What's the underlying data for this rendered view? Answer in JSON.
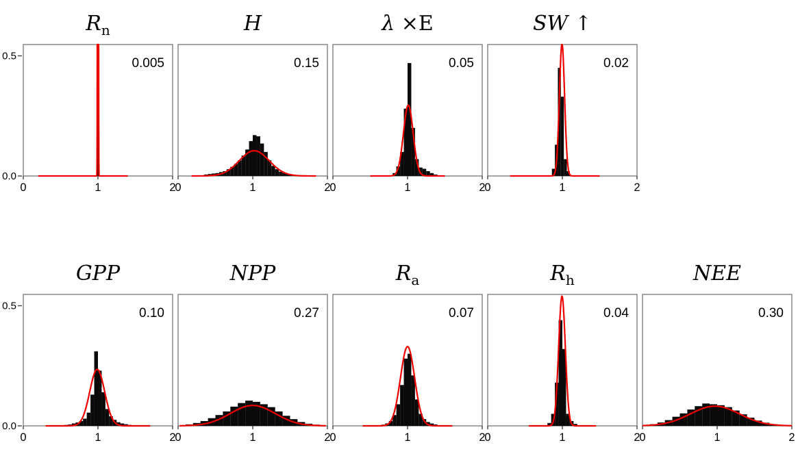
{
  "chart_data": {
    "type": "bar",
    "subtype": "histogram-grid-with-fitted-curves",
    "x_axis": {
      "range": [
        0,
        2
      ],
      "ticks": [
        {
          "label": "0",
          "value": 0
        },
        {
          "label": "1",
          "value": 1
        },
        {
          "label": "2",
          "value": 2
        }
      ]
    },
    "y_axis": {
      "range": [
        0,
        0.55
      ],
      "ticks": [
        {
          "label": "0.5",
          "value": 0.5
        },
        {
          "label": "0.0",
          "value": 0.0
        }
      ]
    },
    "colors": {
      "bar": "#0a0a0a",
      "curve": "#ee0000",
      "box_border": "#777777",
      "text": "#000000",
      "background": "#ffffff"
    },
    "rows": [
      {
        "name": "energy-fluxes",
        "panels": [
          {
            "name": "rn",
            "label": "Rn",
            "title_parts": [
              {
                "t": "R",
                "style": "i"
              },
              {
                "t": "n",
                "style": "sub"
              }
            ],
            "annotation": "0.005",
            "histogram": {
              "bin_start": 0.99,
              "bin_width": 0.02,
              "heights": [
                0.52
              ]
            },
            "curve": {
              "mean": 1.0,
              "sigma": 0.004,
              "peak": 9.0,
              "range": [
                0.2,
                1.4
              ]
            }
          },
          {
            "name": "h",
            "label": "H",
            "title_parts": [
              {
                "t": "H",
                "style": "i"
              }
            ],
            "annotation": "0.15",
            "histogram": {
              "bin_start": 0.35,
              "bin_width": 0.05,
              "heights": [
                0.006,
                0.008,
                0.01,
                0.012,
                0.016,
                0.02,
                0.028,
                0.038,
                0.05,
                0.065,
                0.085,
                0.11,
                0.145,
                0.17,
                0.165,
                0.135,
                0.1,
                0.065,
                0.042,
                0.028,
                0.018,
                0.012,
                0.008,
                0.005
              ]
            },
            "curve": {
              "mean": 1.02,
              "sigma": 0.2,
              "peak": 0.105,
              "range": [
                0.18,
                1.85
              ]
            }
          },
          {
            "name": "lambda-e",
            "label": "λ×E",
            "title_parts": [
              {
                "t": "λ",
                "style": "i"
              },
              {
                "t": " ×E",
                "style": "n"
              }
            ],
            "annotation": "0.05",
            "histogram": {
              "bin_start": 0.8,
              "bin_width": 0.05,
              "heights": [
                0.012,
                0.04,
                0.1,
                0.28,
                0.47,
                0.2,
                0.07,
                0.035,
                0.03,
                0.02,
                0.012,
                0.006
              ]
            },
            "curve": {
              "mean": 1.01,
              "sigma": 0.065,
              "peak": 0.295,
              "range": [
                0.5,
                1.5
              ]
            }
          },
          {
            "name": "sw-up",
            "label": "SW↑",
            "title_parts": [
              {
                "t": "SW",
                "style": "i"
              },
              {
                "t": " ↑",
                "style": "n"
              }
            ],
            "annotation": "0.02",
            "histogram": {
              "bin_start": 0.86,
              "bin_width": 0.04,
              "heights": [
                0.03,
                0.13,
                0.45,
                0.33,
                0.07,
                0.02
              ]
            },
            "curve": {
              "mean": 0.995,
              "sigma": 0.035,
              "peak": 0.55,
              "range": [
                0.3,
                1.5
              ]
            }
          }
        ]
      },
      {
        "name": "carbon-fluxes",
        "panels": [
          {
            "name": "gpp",
            "label": "GPP",
            "title_parts": [
              {
                "t": "GPP",
                "style": "i"
              }
            ],
            "annotation": "0.10",
            "histogram": {
              "bin_start": 0.55,
              "bin_width": 0.05,
              "heights": [
                0.004,
                0.006,
                0.01,
                0.014,
                0.02,
                0.03,
                0.055,
                0.13,
                0.31,
                0.23,
                0.14,
                0.07,
                0.04,
                0.025,
                0.015,
                0.01,
                0.007,
                0.004
              ]
            },
            "curve": {
              "mean": 0.99,
              "sigma": 0.1,
              "peak": 0.235,
              "range": [
                0.3,
                1.7
              ]
            }
          },
          {
            "name": "npp",
            "label": "NPP",
            "title_parts": [
              {
                "t": "NPP",
                "style": "i"
              }
            ],
            "annotation": "0.27",
            "histogram": {
              "bin_start": 0.1,
              "bin_width": 0.1,
              "heights": [
                0.006,
                0.012,
                0.02,
                0.032,
                0.045,
                0.06,
                0.08,
                0.095,
                0.105,
                0.1,
                0.09,
                0.078,
                0.06,
                0.042,
                0.028,
                0.016,
                0.009,
                0.005
              ]
            },
            "curve": {
              "mean": 1.0,
              "sigma": 0.3,
              "peak": 0.085,
              "range": [
                0.02,
                1.98
              ]
            }
          },
          {
            "name": "ra",
            "label": "Ra",
            "title_parts": [
              {
                "t": "R",
                "style": "i"
              },
              {
                "t": "a",
                "style": "sub"
              }
            ],
            "annotation": "0.07",
            "histogram": {
              "bin_start": 0.65,
              "bin_width": 0.05,
              "heights": [
                0.005,
                0.01,
                0.02,
                0.045,
                0.09,
                0.17,
                0.28,
                0.3,
                0.21,
                0.11,
                0.05,
                0.028,
                0.016,
                0.01,
                0.006
              ]
            },
            "curve": {
              "mean": 1.0,
              "sigma": 0.095,
              "peak": 0.33,
              "range": [
                0.4,
                1.6
              ]
            }
          },
          {
            "name": "rh",
            "label": "Rh",
            "title_parts": [
              {
                "t": "R",
                "style": "i"
              },
              {
                "t": "h",
                "style": "sub"
              }
            ],
            "annotation": "0.04",
            "histogram": {
              "bin_start": 0.8,
              "bin_width": 0.05,
              "heights": [
                0.012,
                0.05,
                0.18,
                0.44,
                0.32,
                0.05,
                0.02,
                0.008
              ]
            },
            "curve": {
              "mean": 0.995,
              "sigma": 0.045,
              "peak": 0.54,
              "range": [
                0.55,
                1.45
              ]
            }
          },
          {
            "name": "nee",
            "label": "NEE",
            "title_parts": [
              {
                "t": "NEE",
                "style": "i"
              }
            ],
            "annotation": "0.30",
            "histogram": {
              "bin_start": 0.0,
              "bin_width": 0.1,
              "heights": [
                0.003,
                0.007,
                0.014,
                0.024,
                0.038,
                0.052,
                0.068,
                0.082,
                0.093,
                0.09,
                0.086,
                0.078,
                0.064,
                0.048,
                0.034,
                0.022,
                0.013,
                0.007,
                0.004,
                0.002
              ]
            },
            "curve": {
              "mean": 0.97,
              "sigma": 0.33,
              "peak": 0.082,
              "range": [
                0.0,
                2.0
              ]
            }
          }
        ]
      }
    ]
  }
}
